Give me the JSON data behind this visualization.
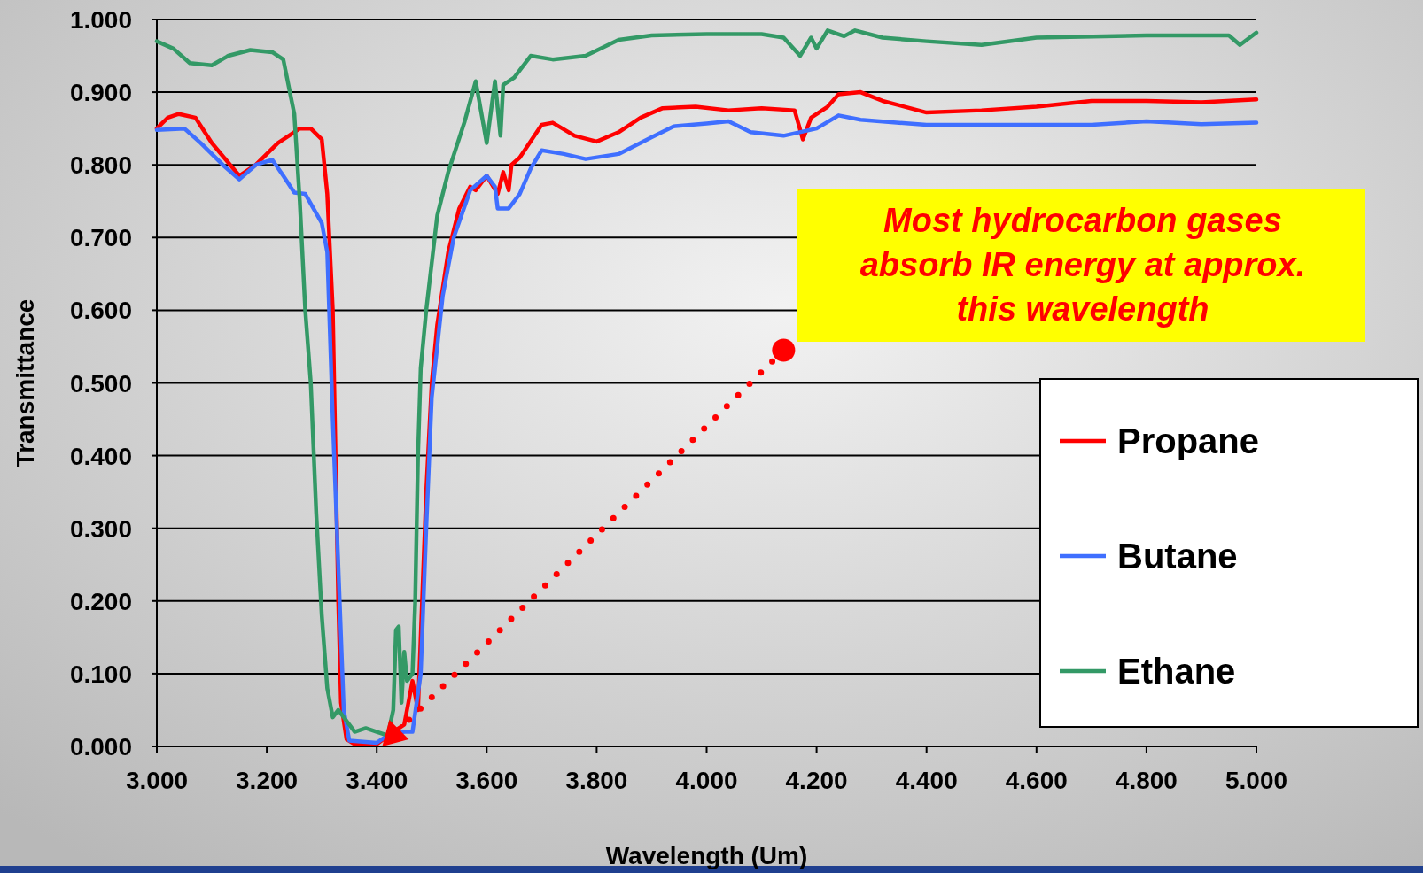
{
  "chart_data": {
    "type": "line",
    "xlabel": "Wavelength (Um)",
    "ylabel": "Transmittance",
    "xlim": [
      3,
      5
    ],
    "ylim": [
      0,
      1
    ],
    "xticks": [
      {
        "value": 3,
        "label": "3.000"
      },
      {
        "value": 3.2,
        "label": "3.200"
      },
      {
        "value": 3.4,
        "label": "3.400"
      },
      {
        "value": 3.6,
        "label": "3.600"
      },
      {
        "value": 3.8,
        "label": "3.800"
      },
      {
        "value": 4,
        "label": "4.000"
      },
      {
        "value": 4.2,
        "label": "4.200"
      },
      {
        "value": 4.4,
        "label": "4.400"
      },
      {
        "value": 4.6,
        "label": "4.600"
      },
      {
        "value": 4.8,
        "label": "4.800"
      },
      {
        "value": 5,
        "label": "5.000"
      }
    ],
    "yticks": [
      {
        "value": 0,
        "label": "0.000"
      },
      {
        "value": 0.1,
        "label": "0.100"
      },
      {
        "value": 0.2,
        "label": "0.200"
      },
      {
        "value": 0.3,
        "label": "0.300"
      },
      {
        "value": 0.4,
        "label": "0.400"
      },
      {
        "value": 0.5,
        "label": "0.500"
      },
      {
        "value": 0.6,
        "label": "0.600"
      },
      {
        "value": 0.7,
        "label": "0.700"
      },
      {
        "value": 0.8,
        "label": "0.800"
      },
      {
        "value": 0.9,
        "label": "0.900"
      },
      {
        "value": 1,
        "label": "1.000"
      }
    ],
    "grid": "y",
    "legend": "right",
    "line_style": "solid",
    "series": [
      {
        "name": "Propane",
        "color": "#ff0000",
        "x": [
          3,
          3.02,
          3.04,
          3.07,
          3.1,
          3.15,
          3.18,
          3.22,
          3.26,
          3.28,
          3.3,
          3.31,
          3.32,
          3.325,
          3.33,
          3.335,
          3.345,
          3.36,
          3.4,
          3.43,
          3.45,
          3.465,
          3.475,
          3.48,
          3.49,
          3.5,
          3.51,
          3.53,
          3.55,
          3.57,
          3.58,
          3.6,
          3.62,
          3.63,
          3.64,
          3.645,
          3.66,
          3.7,
          3.72,
          3.76,
          3.8,
          3.84,
          3.88,
          3.92,
          3.98,
          4.04,
          4.1,
          4.16,
          4.175,
          4.19,
          4.22,
          4.24,
          4.28,
          4.32,
          4.4,
          4.5,
          4.6,
          4.7,
          4.8,
          4.9,
          5
        ],
        "values": [
          0.85,
          0.865,
          0.87,
          0.865,
          0.83,
          0.785,
          0.8,
          0.83,
          0.85,
          0.85,
          0.835,
          0.76,
          0.6,
          0.4,
          0.2,
          0.06,
          0.01,
          0.003,
          0.003,
          0.02,
          0.03,
          0.09,
          0.05,
          0.15,
          0.35,
          0.5,
          0.58,
          0.68,
          0.74,
          0.77,
          0.765,
          0.785,
          0.76,
          0.79,
          0.765,
          0.8,
          0.81,
          0.855,
          0.858,
          0.84,
          0.832,
          0.845,
          0.865,
          0.878,
          0.88,
          0.875,
          0.878,
          0.875,
          0.835,
          0.865,
          0.88,
          0.897,
          0.9,
          0.888,
          0.872,
          0.875,
          0.88,
          0.888,
          0.888,
          0.886,
          0.89
        ]
      },
      {
        "name": "Butane",
        "color": "#3f6fff",
        "x": [
          3,
          3.05,
          3.08,
          3.12,
          3.15,
          3.18,
          3.21,
          3.23,
          3.25,
          3.27,
          3.3,
          3.31,
          3.32,
          3.33,
          3.34,
          3.35,
          3.4,
          3.42,
          3.45,
          3.465,
          3.48,
          3.49,
          3.5,
          3.52,
          3.54,
          3.57,
          3.6,
          3.615,
          3.62,
          3.64,
          3.66,
          3.68,
          3.7,
          3.74,
          3.78,
          3.84,
          3.9,
          3.94,
          4,
          4.04,
          4.08,
          4.14,
          4.2,
          4.24,
          4.28,
          4.4,
          4.6,
          4.7,
          4.8,
          4.9,
          5
        ],
        "values": [
          0.848,
          0.85,
          0.83,
          0.8,
          0.78,
          0.8,
          0.807,
          0.785,
          0.762,
          0.76,
          0.72,
          0.68,
          0.45,
          0.25,
          0.05,
          0.008,
          0.005,
          0.015,
          0.02,
          0.02,
          0.1,
          0.3,
          0.48,
          0.62,
          0.7,
          0.765,
          0.785,
          0.77,
          0.74,
          0.74,
          0.76,
          0.795,
          0.82,
          0.815,
          0.808,
          0.815,
          0.838,
          0.853,
          0.857,
          0.86,
          0.845,
          0.84,
          0.85,
          0.868,
          0.862,
          0.855,
          0.855,
          0.855,
          0.86,
          0.856,
          0.858
        ]
      },
      {
        "name": "Ethane",
        "color": "#339966",
        "x": [
          3,
          3.03,
          3.06,
          3.1,
          3.13,
          3.17,
          3.21,
          3.23,
          3.25,
          3.26,
          3.27,
          3.28,
          3.29,
          3.3,
          3.31,
          3.32,
          3.33,
          3.35,
          3.36,
          3.38,
          3.4,
          3.42,
          3.43,
          3.435,
          3.44,
          3.445,
          3.45,
          3.455,
          3.465,
          3.47,
          3.475,
          3.48,
          3.49,
          3.51,
          3.53,
          3.56,
          3.58,
          3.6,
          3.615,
          3.625,
          3.63,
          3.65,
          3.68,
          3.72,
          3.78,
          3.84,
          3.9,
          4,
          4.1,
          4.14,
          4.17,
          4.19,
          4.2,
          4.22,
          4.25,
          4.27,
          4.32,
          4.4,
          4.5,
          4.6,
          4.8,
          4.95,
          4.97,
          5
        ],
        "values": [
          0.97,
          0.96,
          0.94,
          0.937,
          0.95,
          0.958,
          0.955,
          0.945,
          0.87,
          0.75,
          0.6,
          0.5,
          0.32,
          0.18,
          0.08,
          0.04,
          0.05,
          0.03,
          0.02,
          0.025,
          0.02,
          0.015,
          0.05,
          0.16,
          0.165,
          0.06,
          0.13,
          0.09,
          0.1,
          0.2,
          0.4,
          0.52,
          0.6,
          0.73,
          0.79,
          0.86,
          0.915,
          0.83,
          0.915,
          0.84,
          0.91,
          0.92,
          0.95,
          0.945,
          0.95,
          0.972,
          0.978,
          0.98,
          0.98,
          0.975,
          0.95,
          0.975,
          0.96,
          0.985,
          0.977,
          0.985,
          0.975,
          0.97,
          0.965,
          0.975,
          0.978,
          0.978,
          0.965,
          0.982
        ]
      }
    ],
    "annotations": [
      "Most hydrocarbon gases\nabsorb IR energy at approx.\nthis wavelength"
    ]
  }
}
